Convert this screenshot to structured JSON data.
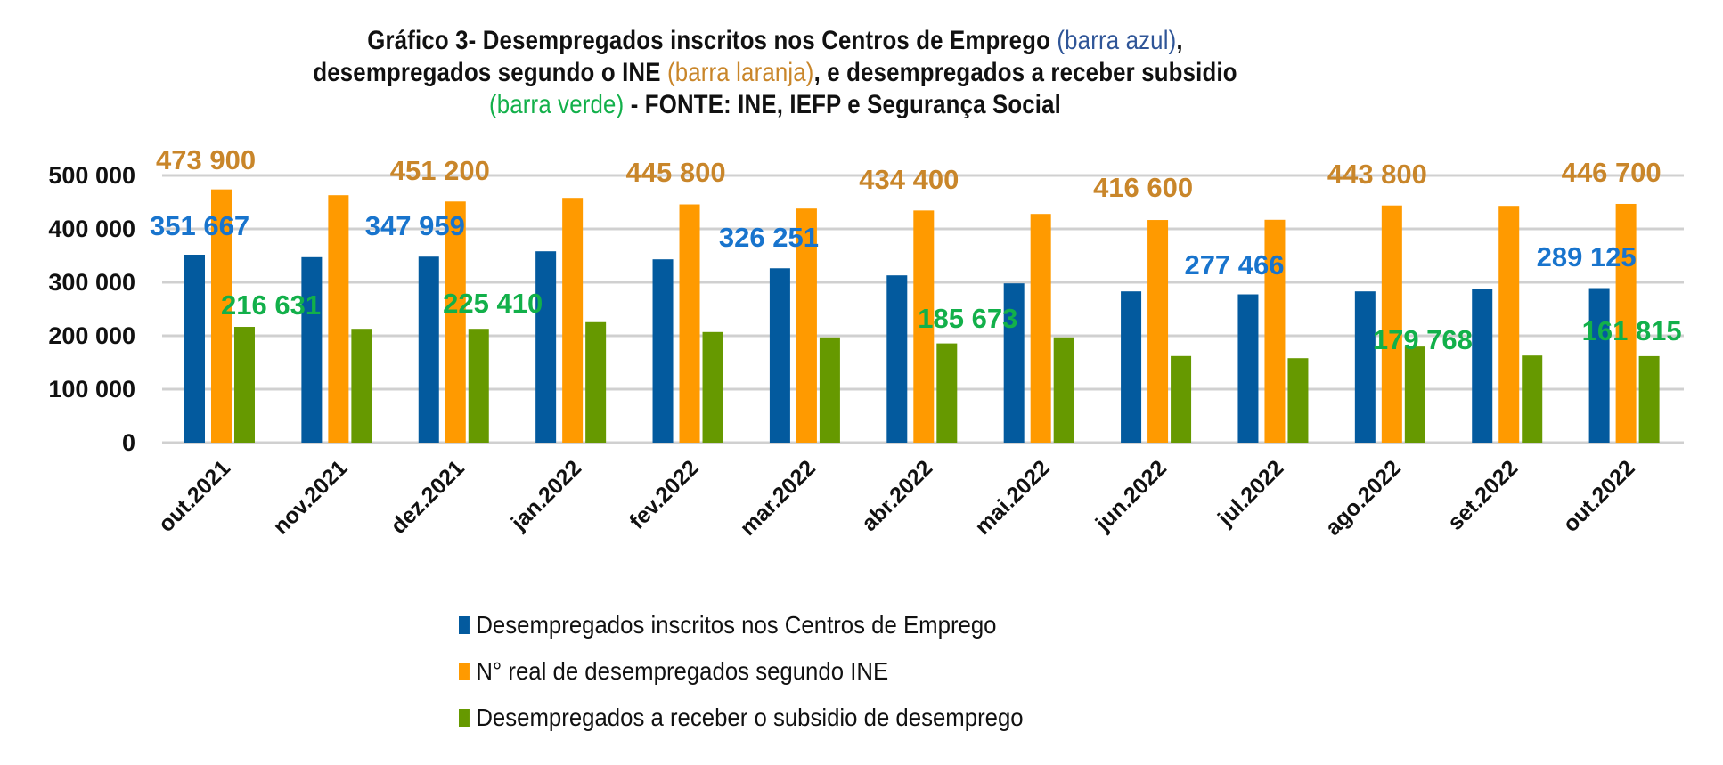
{
  "chart_data": {
    "type": "bar",
    "title_parts": [
      {
        "text": "Gráfico 3- Desempregados inscritos nos Centros de Emprego ",
        "style": "plain"
      },
      {
        "text": "(barra azul)",
        "style": "blue"
      },
      {
        "text": ",",
        "style": "plain"
      },
      {
        "text": "desempregados segundo o INE ",
        "style": "plain"
      },
      {
        "text": "(barra laranja)",
        "style": "orange"
      },
      {
        "text": ", e desempregados a receber subsidio",
        "style": "plain"
      },
      {
        "text": "(barra verde)",
        "style": "green"
      },
      {
        "text": " - FONTE:  INE,  IEFP  e Segurança Social",
        "style": "plain"
      }
    ],
    "categories": [
      "out.2021",
      "nov.2021",
      "dez.2021",
      "jan.2022",
      "fev.2022",
      "mar.2022",
      "abr.2022",
      "mai.2022",
      "jun.2022",
      "jul.2022",
      "ago.2022",
      "set.2022",
      "out.2022"
    ],
    "ylim": [
      0,
      500000
    ],
    "yticks": [
      0,
      100000,
      200000,
      300000,
      400000,
      500000
    ],
    "ytick_labels": [
      "0",
      "100 000",
      "200 000",
      "300 000",
      "400 000",
      "500 000"
    ],
    "grid": true,
    "legend_position": "bottom",
    "series": [
      {
        "name": "Desempregados inscritos nos Centros de Emprego",
        "color": "#035a9e",
        "label_color": "#1874cd",
        "values": [
          351667,
          347000,
          347959,
          358000,
          343000,
          326251,
          313000,
          298000,
          283000,
          277466,
          283000,
          288000,
          289125
        ],
        "data_labels": {
          "0": "351 667",
          "2": "347 959",
          "5": "326 251",
          "9": "277 466",
          "12": "289 125"
        }
      },
      {
        "name": "N° real de desempregados segundo INE",
        "color": "#ff9a00",
        "label_color": "#c9862a",
        "values": [
          473900,
          463000,
          451200,
          458000,
          445800,
          438000,
          434400,
          428000,
          416600,
          417000,
          443800,
          443000,
          446700
        ],
        "data_labels": {
          "0": "473 900",
          "2": "451 200",
          "4": "445 800",
          "6": "434 400",
          "8": "416 600",
          "10": "443 800",
          "12": "446 700"
        }
      },
      {
        "name": "Desempregados a receber o subsidio de desemprego",
        "color": "#669900",
        "label_color": "#12b04a",
        "values": [
          216631,
          213000,
          213000,
          225410,
          207000,
          197000,
          185673,
          197000,
          162000,
          158000,
          179768,
          163000,
          161815
        ],
        "data_labels": {
          "0": "216 631",
          "3": "225 410",
          "6": "185 673",
          "10": "179 768",
          "12": "161 815"
        }
      }
    ]
  }
}
